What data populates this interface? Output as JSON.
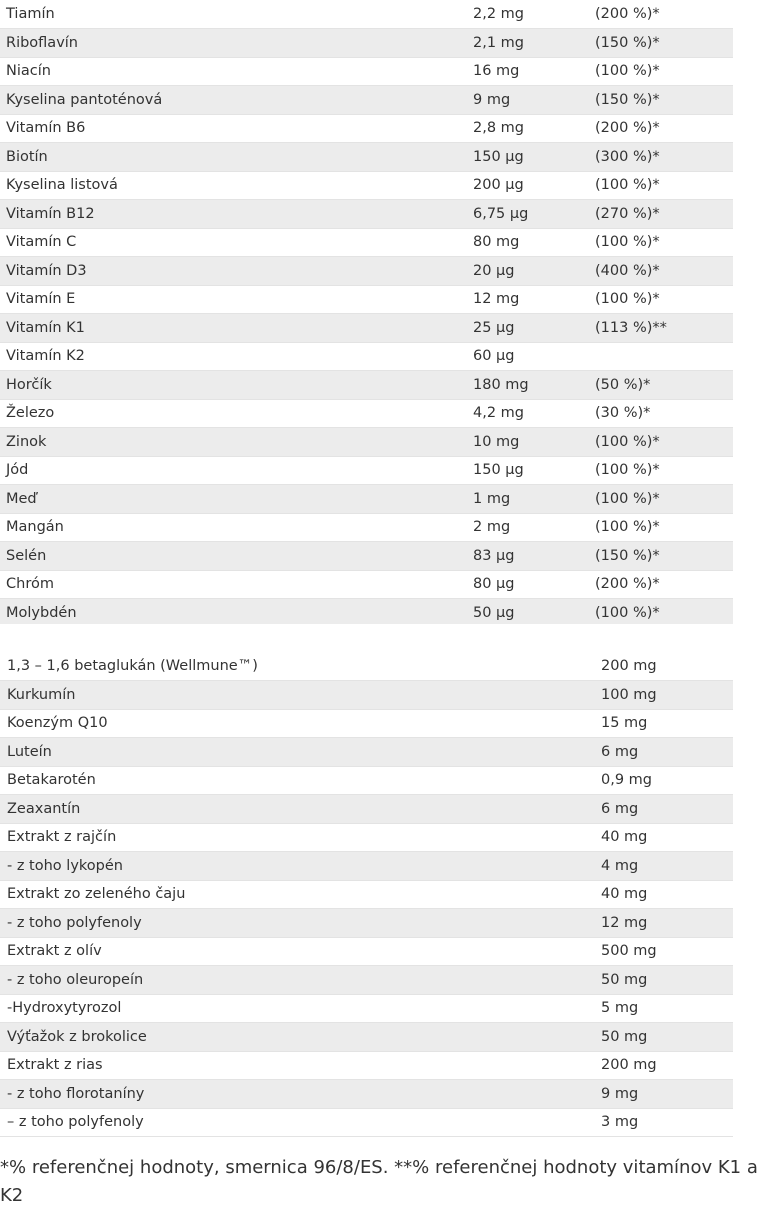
{
  "vitamins_table": {
    "rows": [
      {
        "name": "Tiamín",
        "amount": "2,2 mg",
        "percent": "(200 %)*"
      },
      {
        "name": "Riboflavín",
        "amount": "2,1 mg",
        "percent": "(150 %)*"
      },
      {
        "name": "Niacín",
        "amount": "16 mg",
        "percent": "(100 %)*"
      },
      {
        "name": "Kyselina pantoténová",
        "amount": "9 mg",
        "percent": "(150 %)*"
      },
      {
        "name": "Vitamín B6",
        "amount": "2,8 mg",
        "percent": "(200 %)*"
      },
      {
        "name": "Biotín",
        "amount": "150 µg",
        "percent": "(300 %)*"
      },
      {
        "name": "Kyselina listová",
        "amount": "200 µg",
        "percent": "(100 %)*"
      },
      {
        "name": "Vitamín B12",
        "amount": "6,75 µg",
        "percent": "(270 %)*"
      },
      {
        "name": "Vitamín C",
        "amount": "80 mg",
        "percent": "(100 %)*"
      },
      {
        "name": "Vitamín D3",
        "amount": "20 µg",
        "percent": "(400 %)*"
      },
      {
        "name": "Vitamín E",
        "amount": "12 mg",
        "percent": "(100 %)*"
      },
      {
        "name": "Vitamín K1",
        "amount": "25 µg",
        "percent": "(113 %)**"
      },
      {
        "name": "Vitamín K2",
        "amount": "60 µg",
        "percent": ""
      },
      {
        "name": "Horčík",
        "amount": "180 mg",
        "percent": "(50 %)*"
      },
      {
        "name": "Železo",
        "amount": "4,2 mg",
        "percent": "(30 %)*"
      },
      {
        "name": "Zinok",
        "amount": "10 mg",
        "percent": "(100 %)*"
      },
      {
        "name": "Jód",
        "amount": "150 µg",
        "percent": "(100 %)*"
      },
      {
        "name": "Meď",
        "amount": "1 mg",
        "percent": "(100 %)*"
      },
      {
        "name": "Mangán",
        "amount": "2 mg",
        "percent": "(100 %)*"
      },
      {
        "name": "Selén",
        "amount": "83 µg",
        "percent": "(150 %)*"
      },
      {
        "name": "Chróm",
        "amount": "80 µg",
        "percent": "(200 %)*"
      },
      {
        "name": "Molybdén",
        "amount": "50 µg",
        "percent": "(100 %)*"
      }
    ]
  },
  "extracts_table": {
    "rows": [
      {
        "name": "1,3 – 1,6 betaglukán (Wellmune™)",
        "amount": "200 mg"
      },
      {
        "name": "Kurkumín",
        "amount": "100 mg"
      },
      {
        "name": "Koenzým Q10",
        "amount": "15 mg"
      },
      {
        "name": "Luteín",
        "amount": "6 mg"
      },
      {
        "name": "Betakarotén",
        "amount": "0,9 mg"
      },
      {
        "name": "Zeaxantín",
        "amount": "6 mg"
      },
      {
        "name": "Extrakt z rajčín",
        "amount": "40 mg"
      },
      {
        "name": "- z toho lykopén",
        "amount": "4 mg"
      },
      {
        "name": "Extrakt zo zeleného čaju",
        "amount": "40 mg"
      },
      {
        "name": "- z toho polyfenoly",
        "amount": "12 mg"
      },
      {
        "name": "Extrakt z olív",
        "amount": "500 mg"
      },
      {
        "name": "- z toho oleuropeín",
        "amount": "50 mg"
      },
      {
        "name": "-Hydroxytyrozol",
        "amount": "5 mg"
      },
      {
        "name": "Výťažok z brokolice",
        "amount": "50 mg"
      },
      {
        "name": "Extrakt z rias",
        "amount": "200 mg"
      },
      {
        "name": "- z toho florotaníny",
        "amount": "9 mg"
      },
      {
        "name": "– z toho polyfenoly",
        "amount": "3 mg"
      }
    ]
  },
  "footnote": {
    "line1": "*% referenčnej hodnoty, smernica 96/8/ES. **% referenčnej hodnoty vitamínov K1 a",
    "line2": "K2"
  }
}
